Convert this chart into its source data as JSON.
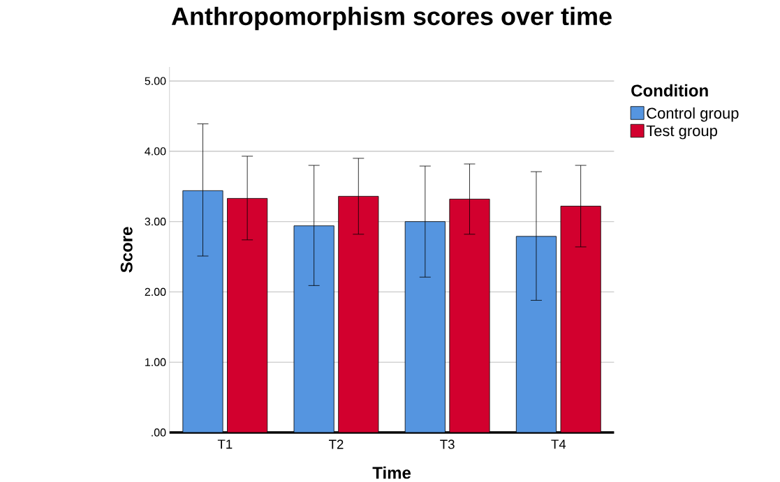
{
  "chart_data": {
    "type": "bar",
    "title": "Anthropomorphism scores over time",
    "xlabel": "Time",
    "ylabel": "Score",
    "legend_title": "Condition",
    "categories": [
      "T1",
      "T2",
      "T3",
      "T4"
    ],
    "series": [
      {
        "name": "Control group",
        "color": "#5595e0",
        "values": [
          3.44,
          2.94,
          3.0,
          2.79
        ],
        "errors": [
          [
            2.51,
            4.39
          ],
          [
            2.09,
            3.8
          ],
          [
            2.21,
            3.79
          ],
          [
            1.88,
            3.71
          ]
        ]
      },
      {
        "name": "Test group",
        "color": "#d2002e",
        "values": [
          3.33,
          3.36,
          3.32,
          3.22
        ],
        "errors": [
          [
            2.74,
            3.93
          ],
          [
            2.82,
            3.9
          ],
          [
            2.82,
            3.82
          ],
          [
            2.64,
            3.8
          ]
        ]
      }
    ],
    "ylim": [
      0,
      5.2
    ],
    "yticks": [
      {
        "value": 0,
        "label": ".00"
      },
      {
        "value": 1,
        "label": "1.00"
      },
      {
        "value": 2,
        "label": "2.00"
      },
      {
        "value": 3,
        "label": "3.00"
      },
      {
        "value": 4,
        "label": "4.00"
      },
      {
        "value": 5,
        "label": "5.00"
      }
    ],
    "grid": "y",
    "legend": "top right"
  }
}
